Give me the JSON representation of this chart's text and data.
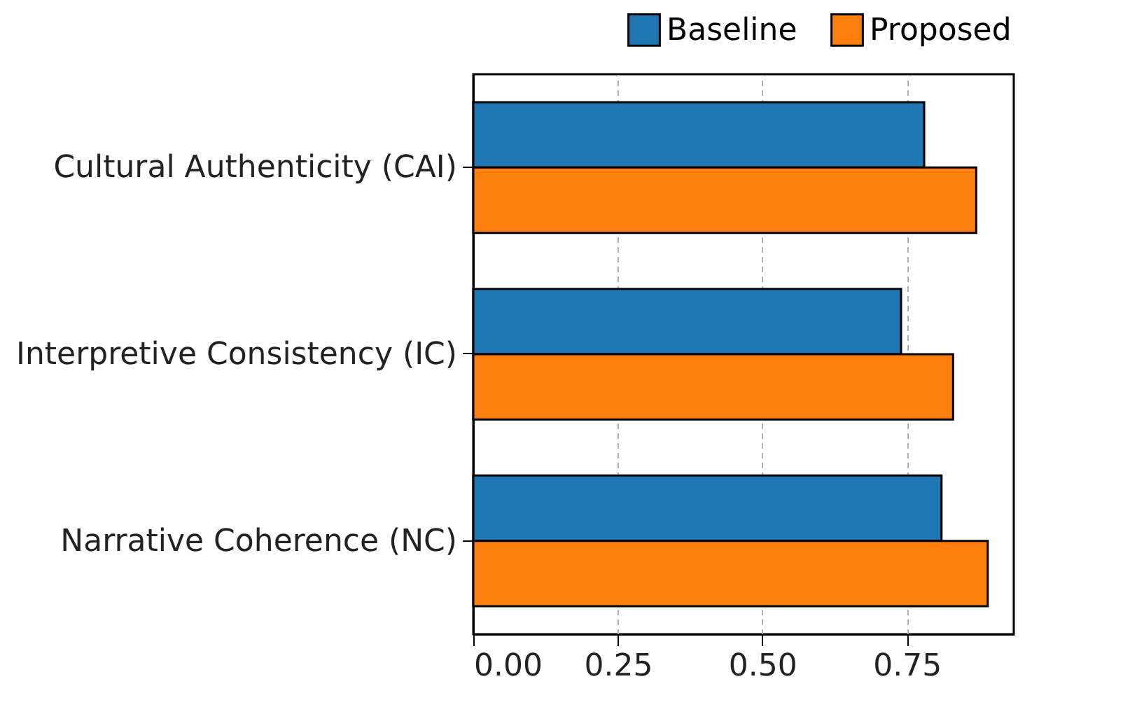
{
  "chart_data": {
    "type": "bar",
    "orientation": "horizontal",
    "categories": [
      "Cultural Authenticity (CAI)",
      "Interpretive Consistency (IC)",
      "Narrative Coherence (NC)"
    ],
    "series": [
      {
        "name": "Baseline",
        "color": "#1f77b4",
        "values": [
          0.78,
          0.74,
          0.81
        ]
      },
      {
        "name": "Proposed",
        "color": "#ff7f0e",
        "values": [
          0.87,
          0.83,
          0.89
        ]
      }
    ],
    "xlim": [
      0,
      0.935
    ],
    "xticks": [
      {
        "value": 0,
        "label": "0.00"
      },
      {
        "value": 0.25,
        "label": "0.25"
      },
      {
        "value": 0.5,
        "label": "0.50"
      },
      {
        "value": 0.75,
        "label": "0.75"
      }
    ],
    "grid": "x",
    "legend": "top right"
  }
}
